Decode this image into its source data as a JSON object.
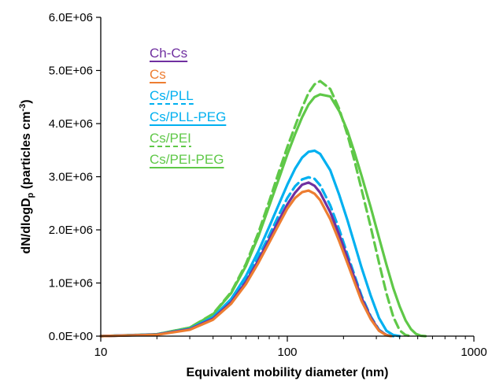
{
  "chart_data": {
    "type": "line",
    "xlabel": "Equivalent mobility diameter (nm)",
    "ylabel_main": "dN/dlogD",
    "ylabel_sub": "p",
    "ylabel_tail": " (particles cm",
    "ylabel_sup": "-3",
    "ylabel_close": ")",
    "x_scale": "log",
    "xlim": [
      10,
      1000
    ],
    "ylim": [
      0,
      6000000
    ],
    "x_ticks": [
      10,
      100,
      1000
    ],
    "x_tick_labels": [
      "10",
      "100",
      "1000"
    ],
    "y_ticks": [
      0,
      1000000,
      2000000,
      3000000,
      4000000,
      5000000,
      6000000
    ],
    "y_tick_labels": [
      "0.0E+00",
      "1.0E+06",
      "2.0E+06",
      "3.0E+06",
      "4.0E+06",
      "5.0E+06",
      "6.0E+06"
    ],
    "grid": false,
    "legend_position": "top-left",
    "series": [
      {
        "name": "Ch-Cs",
        "color": "#7030A0",
        "dash": false,
        "x": [
          10,
          20,
          30,
          40,
          50,
          60,
          70,
          80,
          90,
          100,
          110,
          120,
          130,
          140,
          150,
          170,
          190,
          210,
          230,
          250,
          280,
          310,
          340,
          360
        ],
        "y": [
          0,
          30000,
          130000,
          330000,
          640000,
          1020000,
          1430000,
          1820000,
          2180000,
          2480000,
          2700000,
          2850000,
          2890000,
          2830000,
          2700000,
          2330000,
          1900000,
          1470000,
          1080000,
          720000,
          350000,
          110000,
          20000,
          0
        ]
      },
      {
        "name": "Cs",
        "color": "#ED7D31",
        "dash": false,
        "x": [
          10,
          20,
          30,
          40,
          50,
          60,
          70,
          80,
          90,
          100,
          110,
          120,
          130,
          140,
          150,
          170,
          190,
          210,
          230,
          250,
          280,
          310,
          340,
          360
        ],
        "y": [
          0,
          25000,
          120000,
          310000,
          610000,
          980000,
          1380000,
          1760000,
          2100000,
          2400000,
          2600000,
          2710000,
          2740000,
          2680000,
          2560000,
          2200000,
          1780000,
          1370000,
          1000000,
          660000,
          320000,
          100000,
          15000,
          0
        ]
      },
      {
        "name": "Cs/PLL",
        "color": "#00B0F0",
        "dash": true,
        "x": [
          10,
          20,
          30,
          40,
          50,
          60,
          70,
          80,
          90,
          100,
          110,
          120,
          130,
          140,
          150,
          170,
          190,
          210,
          230,
          250,
          280,
          310,
          340,
          370
        ],
        "y": [
          0,
          30000,
          135000,
          340000,
          660000,
          1060000,
          1490000,
          1900000,
          2280000,
          2600000,
          2820000,
          2950000,
          2990000,
          2960000,
          2840000,
          2460000,
          2000000,
          1540000,
          1130000,
          760000,
          370000,
          120000,
          20000,
          0
        ]
      },
      {
        "name": "Cs/PLL-PEG",
        "color": "#00B0F0",
        "dash": false,
        "x": [
          10,
          20,
          30,
          40,
          50,
          60,
          70,
          80,
          90,
          100,
          110,
          120,
          130,
          140,
          150,
          170,
          190,
          210,
          230,
          250,
          280,
          310,
          340,
          370,
          400
        ],
        "y": [
          0,
          32000,
          140000,
          360000,
          700000,
          1130000,
          1600000,
          2060000,
          2480000,
          2850000,
          3150000,
          3360000,
          3470000,
          3490000,
          3430000,
          3120000,
          2650000,
          2180000,
          1720000,
          1290000,
          760000,
          340000,
          100000,
          20000,
          0
        ]
      },
      {
        "name": "Cs/PEI",
        "color": "#5FC848",
        "dash": true,
        "x": [
          10,
          20,
          30,
          40,
          50,
          60,
          70,
          80,
          90,
          100,
          110,
          120,
          130,
          140,
          150,
          170,
          190,
          210,
          230,
          250,
          280,
          310,
          340,
          370,
          400,
          430,
          460
        ],
        "y": [
          0,
          35000,
          160000,
          420000,
          830000,
          1360000,
          1950000,
          2540000,
          3090000,
          3560000,
          3950000,
          4300000,
          4580000,
          4740000,
          4800000,
          4650000,
          4270000,
          3790000,
          3280000,
          2760000,
          2050000,
          1380000,
          800000,
          360000,
          110000,
          20000,
          0
        ]
      },
      {
        "name": "Cs/PEI-PEG",
        "color": "#5FC848",
        "dash": false,
        "x": [
          10,
          20,
          30,
          40,
          50,
          60,
          70,
          80,
          90,
          100,
          110,
          120,
          130,
          140,
          150,
          170,
          190,
          210,
          230,
          250,
          280,
          310,
          340,
          370,
          400,
          430,
          460,
          490,
          520,
          550
        ],
        "y": [
          0,
          35000,
          160000,
          410000,
          810000,
          1320000,
          1880000,
          2450000,
          2960000,
          3420000,
          3800000,
          4120000,
          4360000,
          4500000,
          4550000,
          4510000,
          4230000,
          3860000,
          3440000,
          3020000,
          2420000,
          1850000,
          1340000,
          900000,
          560000,
          300000,
          130000,
          40000,
          8000,
          0
        ]
      }
    ]
  }
}
